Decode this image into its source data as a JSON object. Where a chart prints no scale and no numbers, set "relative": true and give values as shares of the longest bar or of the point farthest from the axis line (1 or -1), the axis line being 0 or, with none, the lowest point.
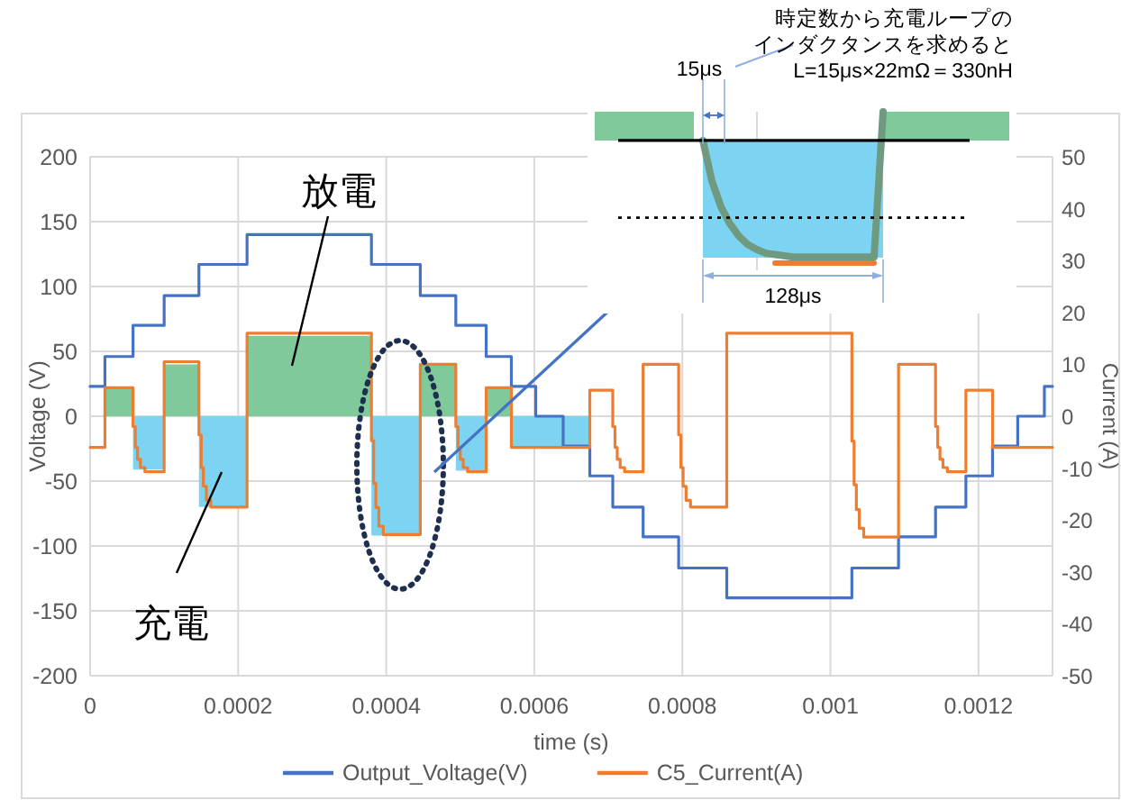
{
  "chart_data": [
    {
      "type": "step",
      "xlabel": "time (s)",
      "ylabel": "Voltage (V)",
      "y2label": "Current (A)",
      "xlim": [
        0,
        0.0013
      ],
      "xticks": [
        0,
        0.0002,
        0.0004,
        0.0006,
        0.0008,
        0.001,
        0.0012
      ],
      "ylim": [
        -200,
        200
      ],
      "yticks": [
        -200,
        -150,
        -100,
        -50,
        0,
        50,
        100,
        150,
        200
      ],
      "y2lim": [
        -50,
        50
      ],
      "y2ticks": [
        -50,
        -40,
        -30,
        -20,
        -10,
        0,
        10,
        20,
        30,
        40,
        50
      ],
      "grid": true,
      "legend": "bottom",
      "series": [
        {
          "type": "area",
          "axis": "y2",
          "color": "#7fc99a",
          "x": [
            2e-05,
            2e-05,
            5.8e-05,
            5.8e-05,
            0.0001,
            0.0001,
            0.000147,
            0.000147,
            0.000212,
            0.000212,
            0.00038,
            0.00038,
            0.000446,
            0.000446,
            0.000494,
            0.000494,
            0.000535,
            0.000535,
            0.000569,
            0.000569
          ],
          "values": [
            0,
            5.5,
            5.5,
            0,
            0,
            10,
            10,
            0,
            0,
            15.5,
            15.5,
            0,
            0,
            10,
            10,
            0,
            0,
            5.5,
            5.5,
            0
          ]
        },
        {
          "type": "area",
          "axis": "y2",
          "color": "#7dd3f2",
          "x": [
            5.8e-05,
            5.8e-05,
            0.0001,
            0.0001,
            0.000147,
            0.000147,
            0.000212,
            0.000212,
            0.00038,
            0.00038,
            0.000446,
            0.000446,
            0.000494,
            0.000494,
            0.000535,
            0.000535,
            0.000569,
            0.000569,
            0.000675,
            0.000675
          ],
          "values": [
            0,
            -10.3,
            -10.3,
            0,
            0,
            -17.5,
            -17.5,
            0,
            0,
            -23,
            -23,
            0,
            0,
            -10.5,
            -10.5,
            0,
            0,
            -6,
            -6,
            0
          ]
        },
        {
          "name": "Output_Voltage(V)",
          "color": "#4472c4",
          "x": [
            0,
            2e-05,
            5.8e-05,
            0.0001,
            0.000147,
            0.000212,
            0.00038,
            0.000446,
            0.000494,
            0.000535,
            0.000569,
            0.000602,
            0.000639,
            0.000675,
            0.000706,
            0.000747,
            0.000795,
            0.00086,
            0.001029,
            0.001092,
            0.001142,
            0.001183,
            0.001219,
            0.001253,
            0.001289,
            0.0013
          ],
          "values": [
            23,
            46,
            70,
            93,
            117,
            140,
            117,
            93,
            70,
            46,
            23,
            0,
            -23,
            -46,
            -70,
            -93,
            -117,
            -140,
            -117,
            -93,
            -70,
            -46,
            -23,
            0,
            23,
            23
          ]
        },
        {
          "name": "C5_Current(A)",
          "axis": "y2",
          "color": "#ed7d31",
          "x": [
            0,
            2e-05,
            5.8e-05,
            6.1e-05,
            6.4e-05,
            6.8e-05,
            7.4e-05,
            0.0001,
            0.000147,
            0.00015,
            0.000153,
            0.000157,
            0.000163,
            0.000212,
            0.00038,
            0.000383,
            0.000386,
            0.00039,
            0.000396,
            0.000446,
            0.000494,
            0.000497,
            0.0005,
            0.000504,
            0.00051,
            0.000535,
            0.000569,
            0.000675,
            0.000706,
            0.000709,
            0.000712,
            0.000716,
            0.000722,
            0.000747,
            0.000795,
            0.000798,
            0.000801,
            0.000805,
            0.000811,
            0.00086,
            0.001029,
            0.001032,
            0.001035,
            0.001039,
            0.001045,
            0.001092,
            0.001142,
            0.001145,
            0.001148,
            0.001152,
            0.001158,
            0.001183,
            0.001219,
            0.0013
          ],
          "values": [
            -6,
            5.5,
            -2,
            -6,
            -8.3,
            -9.9,
            -10.7,
            10.5,
            -3.6,
            -9.9,
            -13.5,
            -16.2,
            -17.5,
            16,
            -4.7,
            -12.9,
            -17.6,
            -21.2,
            -22.8,
            10,
            -2,
            -6,
            -8.3,
            -9.9,
            -10.7,
            5.5,
            -6,
            5,
            -2,
            -6,
            -8.3,
            -9.9,
            -10.7,
            10,
            -3.6,
            -9.9,
            -13.5,
            -16.2,
            -17.5,
            16,
            -4.8,
            -13.2,
            -18,
            -21.6,
            -23.3,
            10,
            -2,
            -6,
            -8.3,
            -9.9,
            -10.7,
            5,
            -6,
            -6
          ]
        }
      ],
      "annotations": [
        "放電",
        "充電"
      ]
    },
    {
      "type": "line",
      "relative": true,
      "categories": [
        null,
        null,
        null,
        null,
        null,
        null,
        null,
        null,
        null,
        null,
        null,
        null,
        null,
        null,
        null,
        null,
        null,
        null,
        null,
        null,
        null,
        null,
        null,
        null,
        null,
        null,
        null,
        null,
        null,
        null,
        null,
        null,
        null,
        null,
        null,
        null,
        null,
        null,
        null,
        null,
        null,
        null,
        null,
        null,
        null,
        null,
        null
      ],
      "series": [
        {
          "type": "area",
          "color": "#7fc99a",
          "values": [
            0.235,
            0.235,
            0.235,
            0.235,
            0.235,
            0.235,
            0.235,
            0.235,
            0.235,
            0.235,
            0.235,
            0.235,
            null,
            null,
            null,
            null,
            null,
            null,
            null,
            null,
            null,
            null,
            null,
            null,
            null,
            null,
            null,
            null,
            null,
            null,
            null,
            null,
            0.235,
            0.235,
            0.235,
            0.235,
            0.235,
            0.235,
            0.235,
            0.235,
            0.235,
            0.235,
            0.235,
            0.235,
            0.235,
            0.235,
            0.235
          ]
        },
        {
          "type": "area",
          "color": "#7dd3f2",
          "values": [
            null,
            null,
            null,
            null,
            null,
            null,
            null,
            null,
            null,
            null,
            null,
            null,
            -0.955,
            -0.955,
            -0.955,
            -0.955,
            -0.955,
            -0.955,
            -0.955,
            -0.955,
            -0.955,
            -0.955,
            -0.955,
            -0.955,
            -0.955,
            -0.955,
            -0.955,
            -0.955,
            -0.955,
            -0.955,
            -0.955,
            -0.955,
            -0.955,
            null,
            null,
            null,
            null,
            null,
            null,
            null,
            null,
            null,
            null,
            null,
            null,
            null,
            null
          ]
        },
        {
          "color": "#ed7d31",
          "values": [
            null,
            null,
            null,
            null,
            null,
            null,
            null,
            null,
            null,
            null,
            null,
            null,
            null,
            null,
            null,
            null,
            null,
            null,
            null,
            null,
            -1,
            -1,
            -1,
            -1,
            -1,
            -1,
            -1,
            -1,
            -1,
            -1,
            -1,
            -1,
            null,
            null,
            null,
            null,
            null,
            null,
            null,
            null,
            null,
            null,
            null,
            null,
            null,
            null,
            null
          ]
        },
        {
          "color": "#6f9a80",
          "values": [
            null,
            null,
            null,
            null,
            null,
            null,
            null,
            null,
            null,
            null,
            null,
            null,
            0,
            -0.33,
            -0.54,
            -0.68,
            -0.78,
            -0.85,
            -0.89,
            -0.92,
            -0.93,
            -0.94,
            -0.95,
            -0.95,
            -0.95,
            -0.95,
            -0.95,
            -0.95,
            -0.95,
            -0.95,
            -0.95,
            -0.95,
            0.235,
            null,
            null,
            null,
            null,
            null,
            null,
            null,
            null,
            null,
            null,
            null,
            null,
            null,
            null
          ]
        }
      ],
      "ref_lines": [
        {
          "axis": "y",
          "value": 0,
          "color": "#000000",
          "line_style": "solid"
        },
        {
          "axis": "y",
          "value": -0.63,
          "color": "#000000",
          "line_style": "dotted"
        }
      ],
      "annotations": [
        "15μs",
        "128μs",
        "時定数から充電ループの",
        "インダクタンスを求めると",
        "L=15μs×22mΩ＝330nH"
      ]
    }
  ]
}
